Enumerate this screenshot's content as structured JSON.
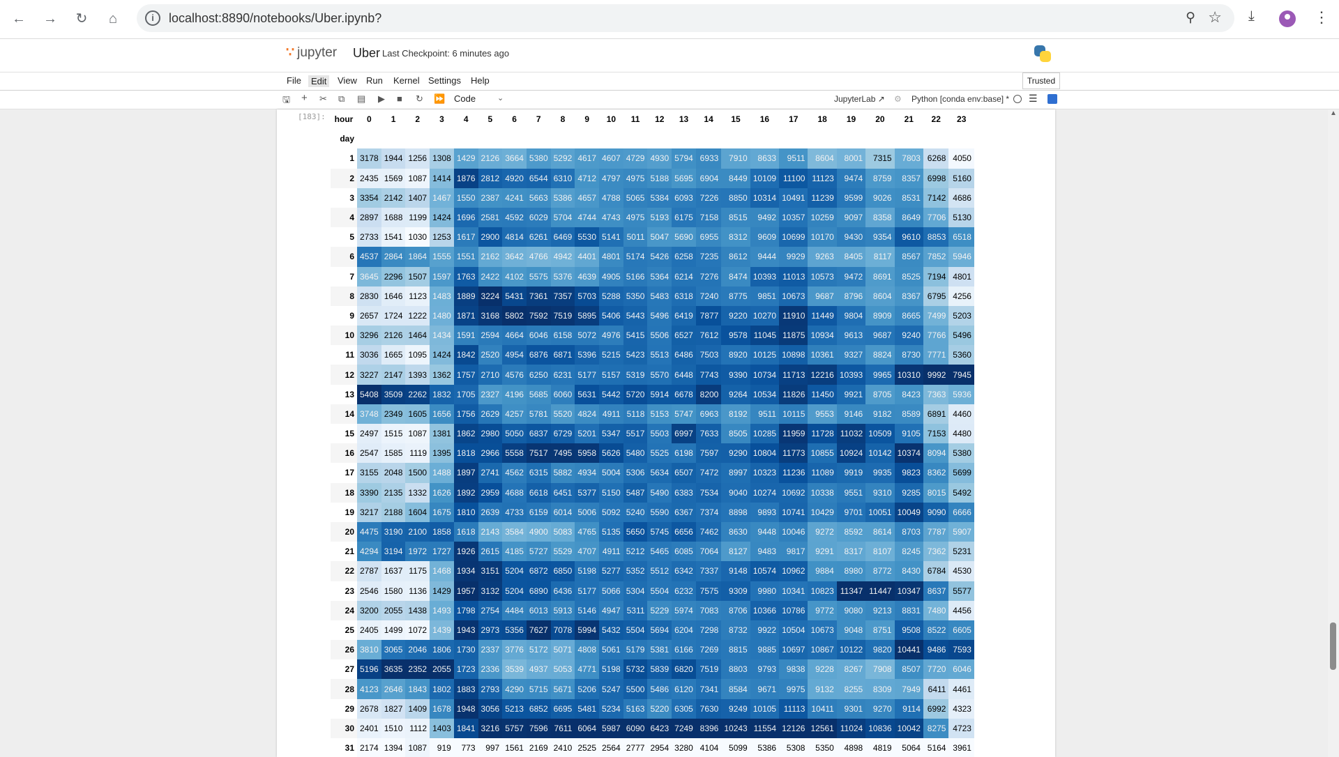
{
  "browser": {
    "url": "localhost:8890/notebooks/Uber.ipynb?"
  },
  "jupyter": {
    "logo_text": "jupyter",
    "notebook_title": "Uber",
    "checkpoint": "Last Checkpoint: 6 minutes ago",
    "trusted": "Trusted"
  },
  "menu": [
    "File",
    "Edit",
    "View",
    "Run",
    "Kernel",
    "Settings",
    "Help"
  ],
  "toolbar": {
    "cell_type": "Code",
    "jupyterlab": "JupyterLab",
    "kernel": "Python [conda env:base] *"
  },
  "output": {
    "prompt": "[183]:",
    "column_label": "hour",
    "index_label": "day",
    "hours": [
      "0",
      "1",
      "2",
      "3",
      "4",
      "5",
      "6",
      "7",
      "8",
      "9",
      "10",
      "11",
      "12",
      "13",
      "14",
      "15",
      "16",
      "17",
      "18",
      "19",
      "20",
      "21",
      "22",
      "23"
    ],
    "rows": [
      {
        "day": "1",
        "values": [
          3178,
          1944,
          1256,
          1308,
          1429,
          2126,
          3664,
          5380,
          5292,
          4617,
          4607,
          4729,
          4930,
          5794,
          6933,
          7910,
          8633,
          9511,
          8604,
          8001,
          7315,
          7803,
          6268,
          4050
        ]
      },
      {
        "day": "2",
        "values": [
          2435,
          1569,
          1087,
          1414,
          1876,
          2812,
          4920,
          6544,
          6310,
          4712,
          4797,
          4975,
          5188,
          5695,
          6904,
          8449,
          10109,
          11100,
          11123,
          9474,
          8759,
          8357,
          6998,
          5160
        ]
      },
      {
        "day": "3",
        "values": [
          3354,
          2142,
          1407,
          1467,
          1550,
          2387,
          4241,
          5663,
          5386,
          4657,
          4788,
          5065,
          5384,
          6093,
          7226,
          8850,
          10314,
          10491,
          11239,
          9599,
          9026,
          8531,
          7142,
          4686
        ]
      },
      {
        "day": "4",
        "values": [
          2897,
          1688,
          1199,
          1424,
          1696,
          2581,
          4592,
          6029,
          5704,
          4744,
          4743,
          4975,
          5193,
          6175,
          7158,
          8515,
          9492,
          10357,
          10259,
          9097,
          8358,
          8649,
          7706,
          5130
        ]
      },
      {
        "day": "5",
        "values": [
          2733,
          1541,
          1030,
          1253,
          1617,
          2900,
          4814,
          6261,
          6469,
          5530,
          5141,
          5011,
          5047,
          5690,
          6955,
          8312,
          9609,
          10699,
          10170,
          9430,
          9354,
          9610,
          8853,
          6518
        ]
      },
      {
        "day": "6",
        "values": [
          4537,
          2864,
          1864,
          1555,
          1551,
          2162,
          3642,
          4766,
          4942,
          4401,
          4801,
          5174,
          5426,
          6258,
          7235,
          8612,
          9444,
          9929,
          9263,
          8405,
          8117,
          8567,
          7852,
          5946
        ]
      },
      {
        "day": "7",
        "values": [
          3645,
          2296,
          1507,
          1597,
          1763,
          2422,
          4102,
          5575,
          5376,
          4639,
          4905,
          5166,
          5364,
          6214,
          7276,
          8474,
          10393,
          11013,
          10573,
          9472,
          8691,
          8525,
          7194,
          4801
        ]
      },
      {
        "day": "8",
        "values": [
          2830,
          1646,
          1123,
          1483,
          1889,
          3224,
          5431,
          7361,
          7357,
          5703,
          5288,
          5350,
          5483,
          6318,
          7240,
          8775,
          9851,
          10673,
          9687,
          8796,
          8604,
          8367,
          6795,
          4256
        ]
      },
      {
        "day": "9",
        "values": [
          2657,
          1724,
          1222,
          1480,
          1871,
          3168,
          5802,
          7592,
          7519,
          5895,
          5406,
          5443,
          5496,
          6419,
          7877,
          9220,
          10270,
          11910,
          11449,
          9804,
          8909,
          8665,
          7499,
          5203
        ]
      },
      {
        "day": "10",
        "values": [
          3296,
          2126,
          1464,
          1434,
          1591,
          2594,
          4664,
          6046,
          6158,
          5072,
          4976,
          5415,
          5506,
          6527,
          7612,
          9578,
          11045,
          11875,
          10934,
          9613,
          9687,
          9240,
          7766,
          5496
        ]
      },
      {
        "day": "11",
        "values": [
          3036,
          1665,
          1095,
          1424,
          1842,
          2520,
          4954,
          6876,
          6871,
          5396,
          5215,
          5423,
          5513,
          6486,
          7503,
          8920,
          10125,
          10898,
          10361,
          9327,
          8824,
          8730,
          7771,
          5360
        ]
      },
      {
        "day": "12",
        "values": [
          3227,
          2147,
          1393,
          1362,
          1757,
          2710,
          4576,
          6250,
          6231,
          5177,
          5157,
          5319,
          5570,
          6448,
          7743,
          9390,
          10734,
          11713,
          12216,
          10393,
          9965,
          10310,
          9992,
          7945
        ]
      },
      {
        "day": "13",
        "values": [
          5408,
          3509,
          2262,
          1832,
          1705,
          2327,
          4196,
          5685,
          6060,
          5631,
          5442,
          5720,
          5914,
          6678,
          8200,
          9264,
          10534,
          11826,
          11450,
          9921,
          8705,
          8423,
          7363,
          5936
        ]
      },
      {
        "day": "14",
        "values": [
          3748,
          2349,
          1605,
          1656,
          1756,
          2629,
          4257,
          5781,
          5520,
          4824,
          4911,
          5118,
          5153,
          5747,
          6963,
          8192,
          9511,
          10115,
          9553,
          9146,
          9182,
          8589,
          6891,
          4460
        ]
      },
      {
        "day": "15",
        "values": [
          2497,
          1515,
          1087,
          1381,
          1862,
          2980,
          5050,
          6837,
          6729,
          5201,
          5347,
          5517,
          5503,
          6997,
          7633,
          8505,
          10285,
          11959,
          11728,
          11032,
          10509,
          9105,
          7153,
          4480
        ]
      },
      {
        "day": "16",
        "values": [
          2547,
          1585,
          1119,
          1395,
          1818,
          2966,
          5558,
          7517,
          7495,
          5958,
          5626,
          5480,
          5525,
          6198,
          7597,
          9290,
          10804,
          11773,
          10855,
          10924,
          10142,
          10374,
          8094,
          5380
        ]
      },
      {
        "day": "17",
        "values": [
          3155,
          2048,
          1500,
          1488,
          1897,
          2741,
          4562,
          6315,
          5882,
          4934,
          5004,
          5306,
          5634,
          6507,
          7472,
          8997,
          10323,
          11236,
          11089,
          9919,
          9935,
          9823,
          8362,
          5699
        ]
      },
      {
        "day": "18",
        "values": [
          3390,
          2135,
          1332,
          1626,
          1892,
          2959,
          4688,
          6618,
          6451,
          5377,
          5150,
          5487,
          5490,
          6383,
          7534,
          9040,
          10274,
          10692,
          10338,
          9551,
          9310,
          9285,
          8015,
          5492
        ]
      },
      {
        "day": "19",
        "values": [
          3217,
          2188,
          1604,
          1675,
          1810,
          2639,
          4733,
          6159,
          6014,
          5006,
          5092,
          5240,
          5590,
          6367,
          7374,
          8898,
          9893,
          10741,
          10429,
          9701,
          10051,
          10049,
          9090,
          6666
        ]
      },
      {
        "day": "20",
        "values": [
          4475,
          3190,
          2100,
          1858,
          1618,
          2143,
          3584,
          4900,
          5083,
          4765,
          5135,
          5650,
          5745,
          6656,
          7462,
          8630,
          9448,
          10046,
          9272,
          8592,
          8614,
          8703,
          7787,
          5907
        ]
      },
      {
        "day": "21",
        "values": [
          4294,
          3194,
          1972,
          1727,
          1926,
          2615,
          4185,
          5727,
          5529,
          4707,
          4911,
          5212,
          5465,
          6085,
          7064,
          8127,
          9483,
          9817,
          9291,
          8317,
          8107,
          8245,
          7362,
          5231
        ]
      },
      {
        "day": "22",
        "values": [
          2787,
          1637,
          1175,
          1468,
          1934,
          3151,
          5204,
          6872,
          6850,
          5198,
          5277,
          5352,
          5512,
          6342,
          7337,
          9148,
          10574,
          10962,
          9884,
          8980,
          8772,
          8430,
          6784,
          4530
        ]
      },
      {
        "day": "23",
        "values": [
          2546,
          1580,
          1136,
          1429,
          1957,
          3132,
          5204,
          6890,
          6436,
          5177,
          5066,
          5304,
          5504,
          6232,
          7575,
          9309,
          9980,
          10341,
          10823,
          11347,
          11447,
          10347,
          8637,
          5577
        ]
      },
      {
        "day": "24",
        "values": [
          3200,
          2055,
          1438,
          1493,
          1798,
          2754,
          4484,
          6013,
          5913,
          5146,
          4947,
          5311,
          5229,
          5974,
          7083,
          8706,
          10366,
          10786,
          9772,
          9080,
          9213,
          8831,
          7480,
          4456
        ]
      },
      {
        "day": "25",
        "values": [
          2405,
          1499,
          1072,
          1439,
          1943,
          2973,
          5356,
          7627,
          7078,
          5994,
          5432,
          5504,
          5694,
          6204,
          7298,
          8732,
          9922,
          10504,
          10673,
          9048,
          8751,
          9508,
          8522,
          6605
        ]
      },
      {
        "day": "26",
        "values": [
          3810,
          3065,
          2046,
          1806,
          1730,
          2337,
          3776,
          5172,
          5071,
          4808,
          5061,
          5179,
          5381,
          6166,
          7269,
          8815,
          9885,
          10697,
          10867,
          10122,
          9820,
          10441,
          9486,
          7593
        ]
      },
      {
        "day": "27",
        "values": [
          5196,
          3635,
          2352,
          2055,
          1723,
          2336,
          3539,
          4937,
          5053,
          4771,
          5198,
          5732,
          5839,
          6820,
          7519,
          8803,
          9793,
          9838,
          9228,
          8267,
          7908,
          8507,
          7720,
          6046
        ]
      },
      {
        "day": "28",
        "values": [
          4123,
          2646,
          1843,
          1802,
          1883,
          2793,
          4290,
          5715,
          5671,
          5206,
          5247,
          5500,
          5486,
          6120,
          7341,
          8584,
          9671,
          9975,
          9132,
          8255,
          8309,
          7949,
          6411,
          4461
        ]
      },
      {
        "day": "29",
        "values": [
          2678,
          1827,
          1409,
          1678,
          1948,
          3056,
          5213,
          6852,
          6695,
          5481,
          5234,
          5163,
          5220,
          6305,
          7630,
          9249,
          10105,
          11113,
          10411,
          9301,
          9270,
          9114,
          6992,
          4323
        ]
      },
      {
        "day": "30",
        "values": [
          2401,
          1510,
          1112,
          1403,
          1841,
          3216,
          5757,
          7596,
          7611,
          6064,
          5987,
          6090,
          6423,
          7249,
          8396,
          10243,
          11554,
          12126,
          12561,
          11024,
          10836,
          10042,
          8275,
          4723
        ]
      },
      {
        "day": "31",
        "values": [
          2174,
          1394,
          1087,
          919,
          773,
          997,
          1561,
          2169,
          2410,
          2525,
          2564,
          2777,
          2954,
          3280,
          4104,
          5099,
          5386,
          5308,
          5350,
          4898,
          4819,
          5064,
          5164,
          3961
        ]
      }
    ]
  }
}
